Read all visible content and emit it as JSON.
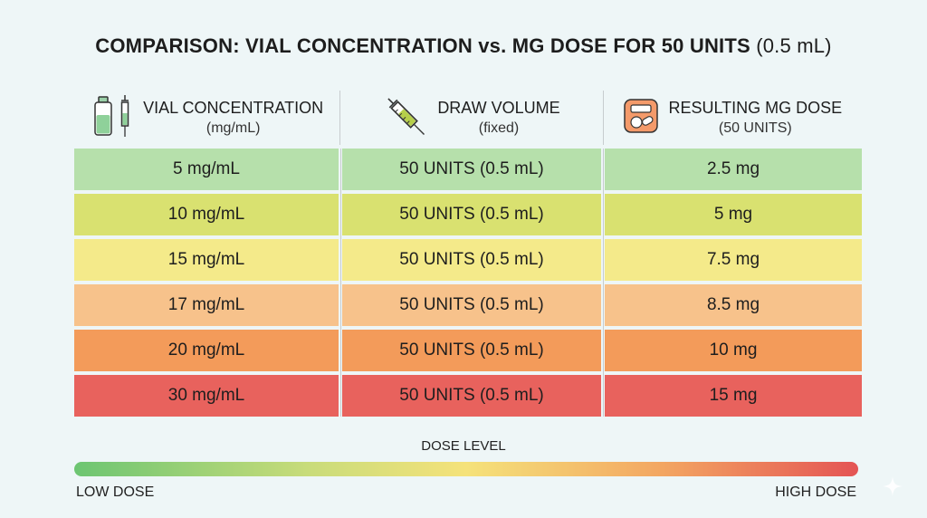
{
  "title": {
    "main": "COMPARISON: VIAL CONCENTRATION vs. MG DOSE FOR 50 UNITS",
    "paren": "(0.5 mL)"
  },
  "columns": [
    {
      "label": "VIAL CONCENTRATION",
      "sublabel": "(mg/mL)",
      "icon": "vial-syringe-icon"
    },
    {
      "label": "DRAW VOLUME",
      "sublabel": "(fixed)",
      "icon": "syringe-icon"
    },
    {
      "label": "RESULTING MG DOSE",
      "sublabel": "(50 UNITS)",
      "icon": "pill-scale-icon"
    }
  ],
  "rows": [
    {
      "concentration": "5 mg/mL",
      "volume": "50 UNITS (0.5 mL)",
      "dose": "2.5 mg",
      "color": "#b6e0ab"
    },
    {
      "concentration": "10 mg/mL",
      "volume": "50 UNITS (0.5 mL)",
      "dose": "5 mg",
      "color": "#d9e170"
    },
    {
      "concentration": "15 mg/mL",
      "volume": "50 UNITS (0.5 mL)",
      "dose": "7.5 mg",
      "color": "#f4ea8a"
    },
    {
      "concentration": "17 mg/mL",
      "volume": "50 UNITS (0.5 mL)",
      "dose": "8.5 mg",
      "color": "#f7c28b"
    },
    {
      "concentration": "20 mg/mL",
      "volume": "50 UNITS (0.5 mL)",
      "dose": "10 mg",
      "color": "#f39b5a"
    },
    {
      "concentration": "30 mg/mL",
      "volume": "50 UNITS (0.5 mL)",
      "dose": "15 mg",
      "color": "#e8625d"
    }
  ],
  "legend": {
    "title": "DOSE LEVEL",
    "low": "LOW DOSE",
    "high": "HIGH DOSE",
    "gradient": [
      "#6cc572",
      "#f5e27a",
      "#e45454"
    ]
  }
}
